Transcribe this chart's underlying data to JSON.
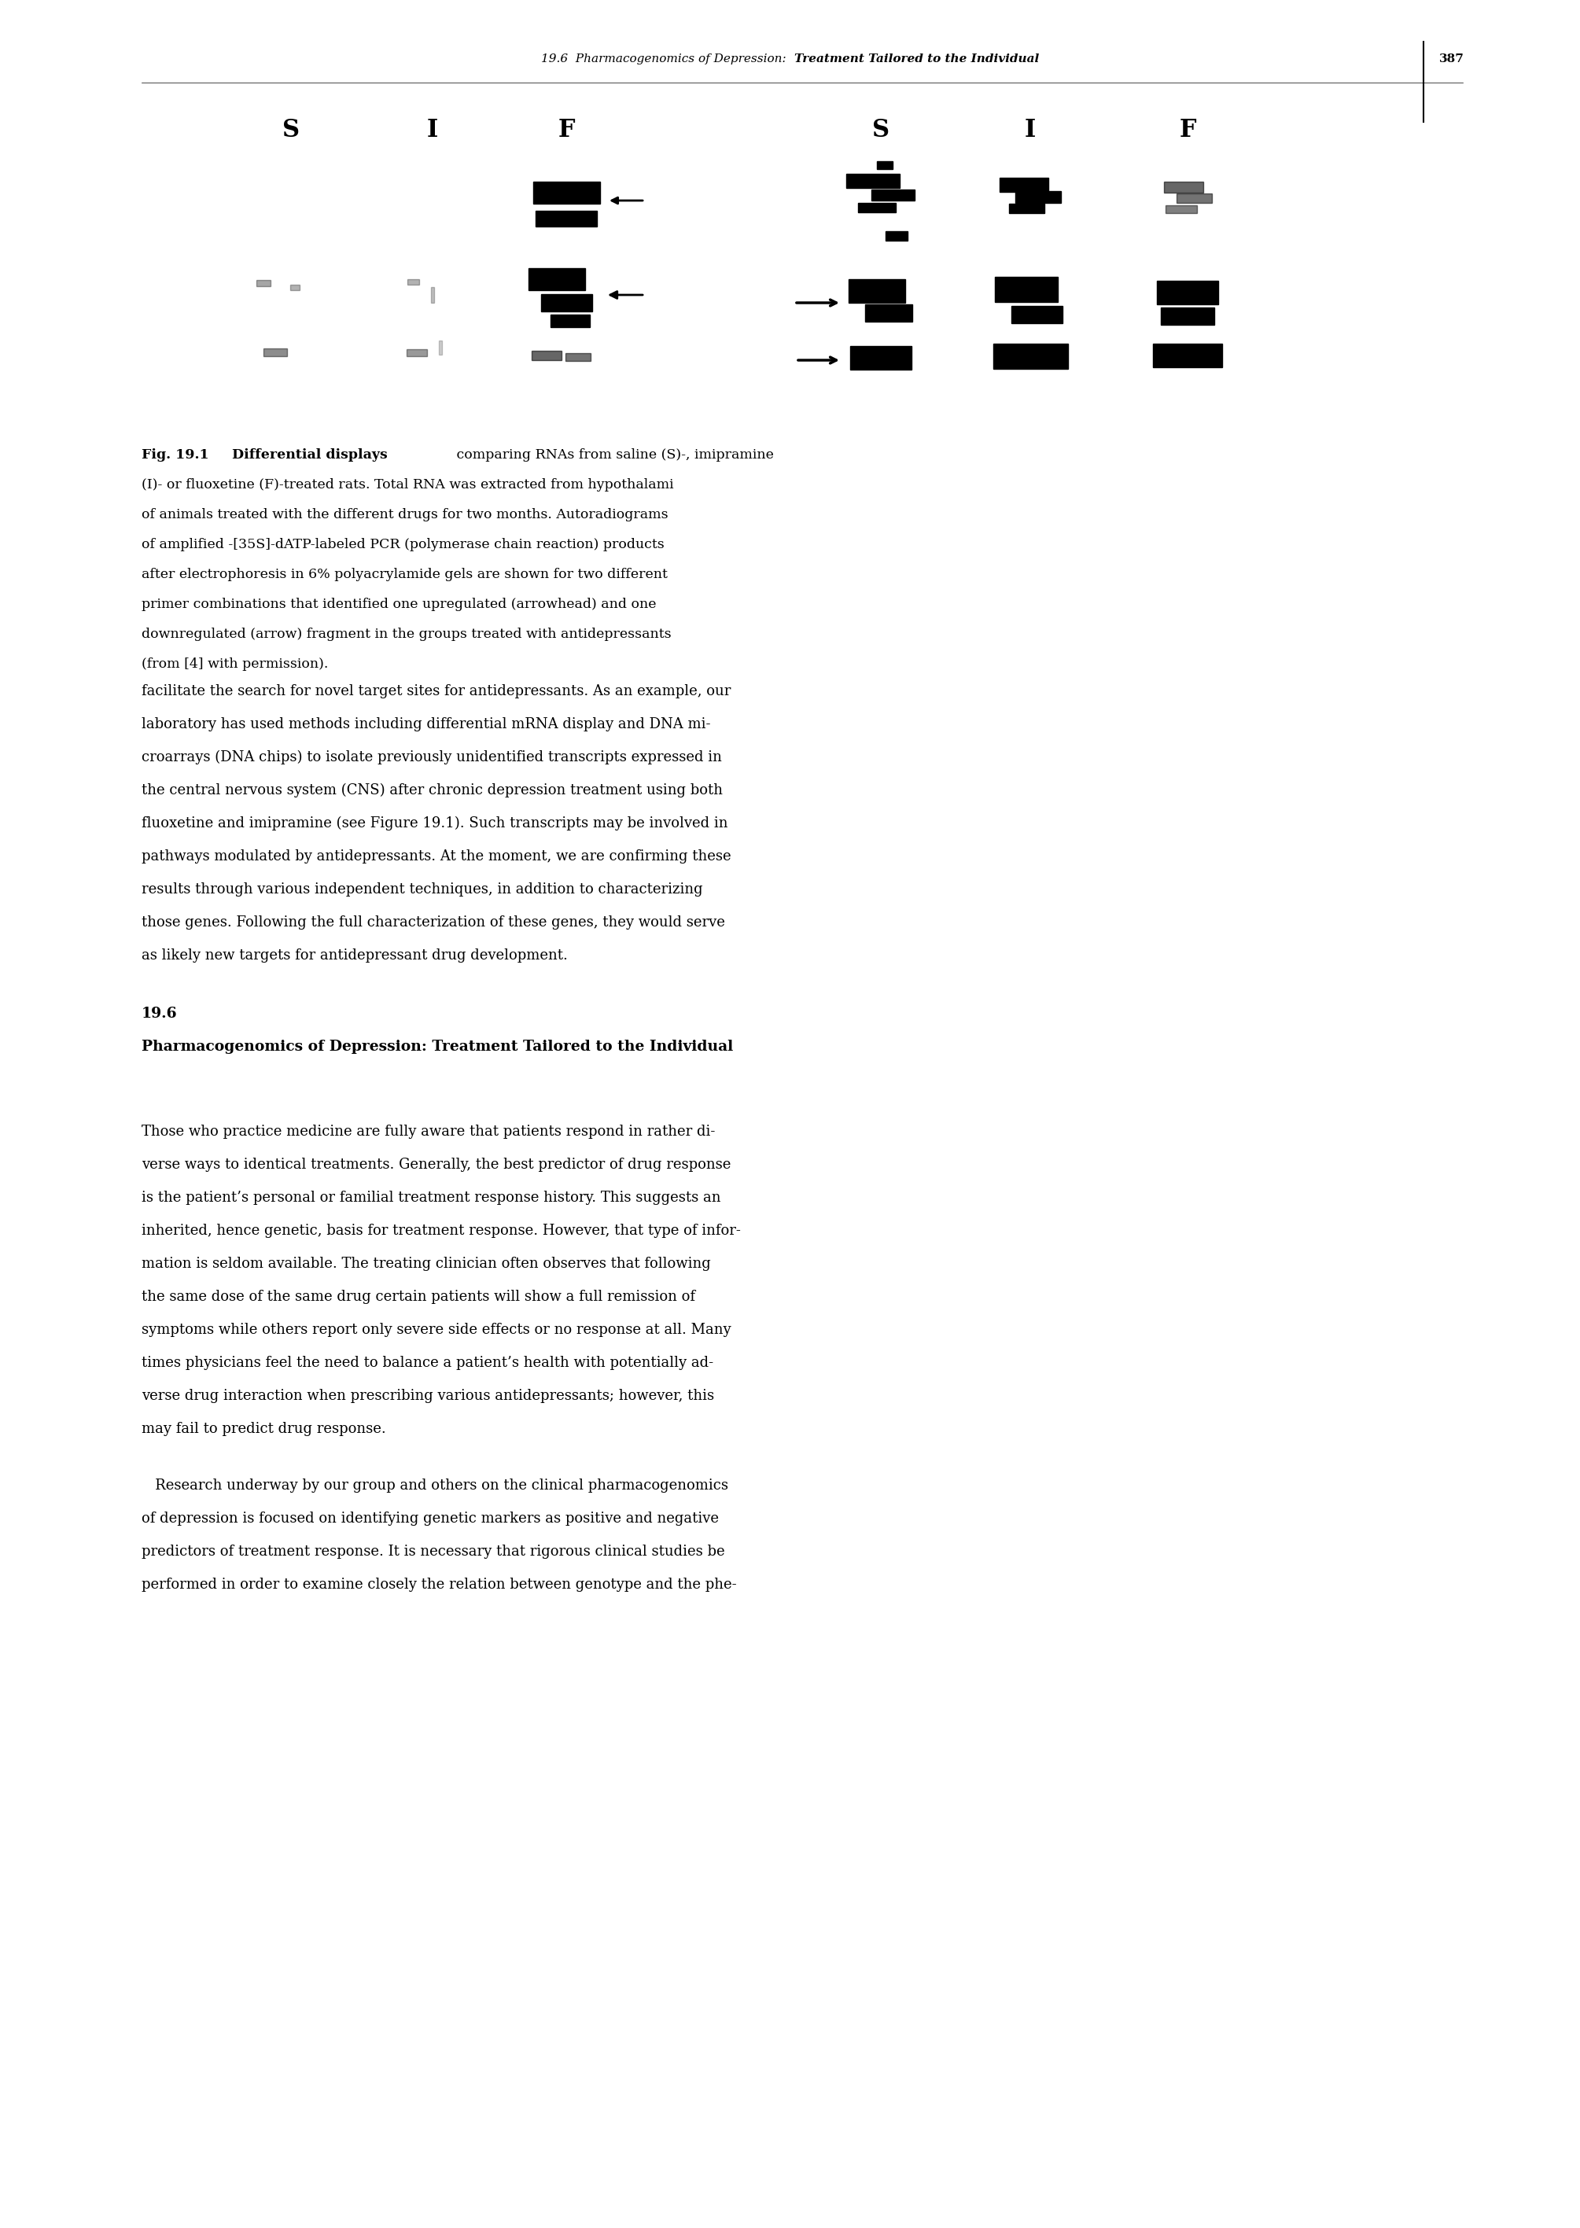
{
  "page_width": 20.09,
  "page_height": 28.33,
  "bg_color": "#ffffff",
  "header_italic": "19.6  Pharmacogenomics of Depression: ",
  "header_bold": "Treatment Tailored to the Individual",
  "header_page": "387",
  "fig_caption_line1_bold": "Fig. 19.1",
  "fig_caption_line1_bold2": "Differential displays",
  "fig_caption_line1_rest": " comparing RNAs from saline (S)-, imipramine",
  "fig_caption_rest": "(I)- or fluoxetine (F)-treated rats. Total RNA was extracted from hypothalami\nof animals treated with the different drugs for two months. Autoradiograms\nof amplified -[35S]-dATP-labeled PCR (polymerase chain reaction) products\nafter electrophoresis in 6% polyacrylamide gels are shown for two different\nprimer combinations that identified one upregulated (arrowhead) and one\ndownregulated (arrow) fragment in the groups treated with antidepressants\n(from [4] with permission).",
  "body_text_1": "facilitate the search for novel target sites for antidepressants. As an example, our\nlaboratory has used methods including differential mRNA display and DNA mi-\ncroarrays (DNA chips) to isolate previously unidentified transcripts expressed in\nthe central nervous system (CNS) after chronic depression treatment using both\nfluoxetine and imipramine (see Figure 19.1). Such transcripts may be involved in\npathways modulated by antidepressants. At the moment, we are confirming these\nresults through various independent techniques, in addition to characterizing\nthose genes. Following the full characterization of these genes, they would serve\nas likely new targets for antidepressant drug development.",
  "section_number": "19.6",
  "section_title": "Pharmacogenomics of Depression: Treatment Tailored to the Individual",
  "body_text_2": "Those who practice medicine are fully aware that patients respond in rather di-\nverse ways to identical treatments. Generally, the best predictor of drug response\nis the patient’s personal or familial treatment response history. This suggests an\ninherited, hence genetic, basis for treatment response. However, that type of infor-\nmation is seldom available. The treating clinician often observes that following\nthe same dose of the same drug certain patients will show a full remission of\nsymptoms while others report only severe side effects or no response at all. Many\ntimes physicians feel the need to balance a patient’s health with potentially ad-\nverse drug interaction when prescribing various antidepressants; however, this\nmay fail to predict drug response.",
  "body_text_3": "   Research underway by our group and others on the clinical pharmacogenomics\nof depression is focused on identifying genetic markers as positive and negative\npredictors of treatment response. It is necessary that rigorous clinical studies be\nperformed in order to examine closely the relation between genotype and the phe-"
}
